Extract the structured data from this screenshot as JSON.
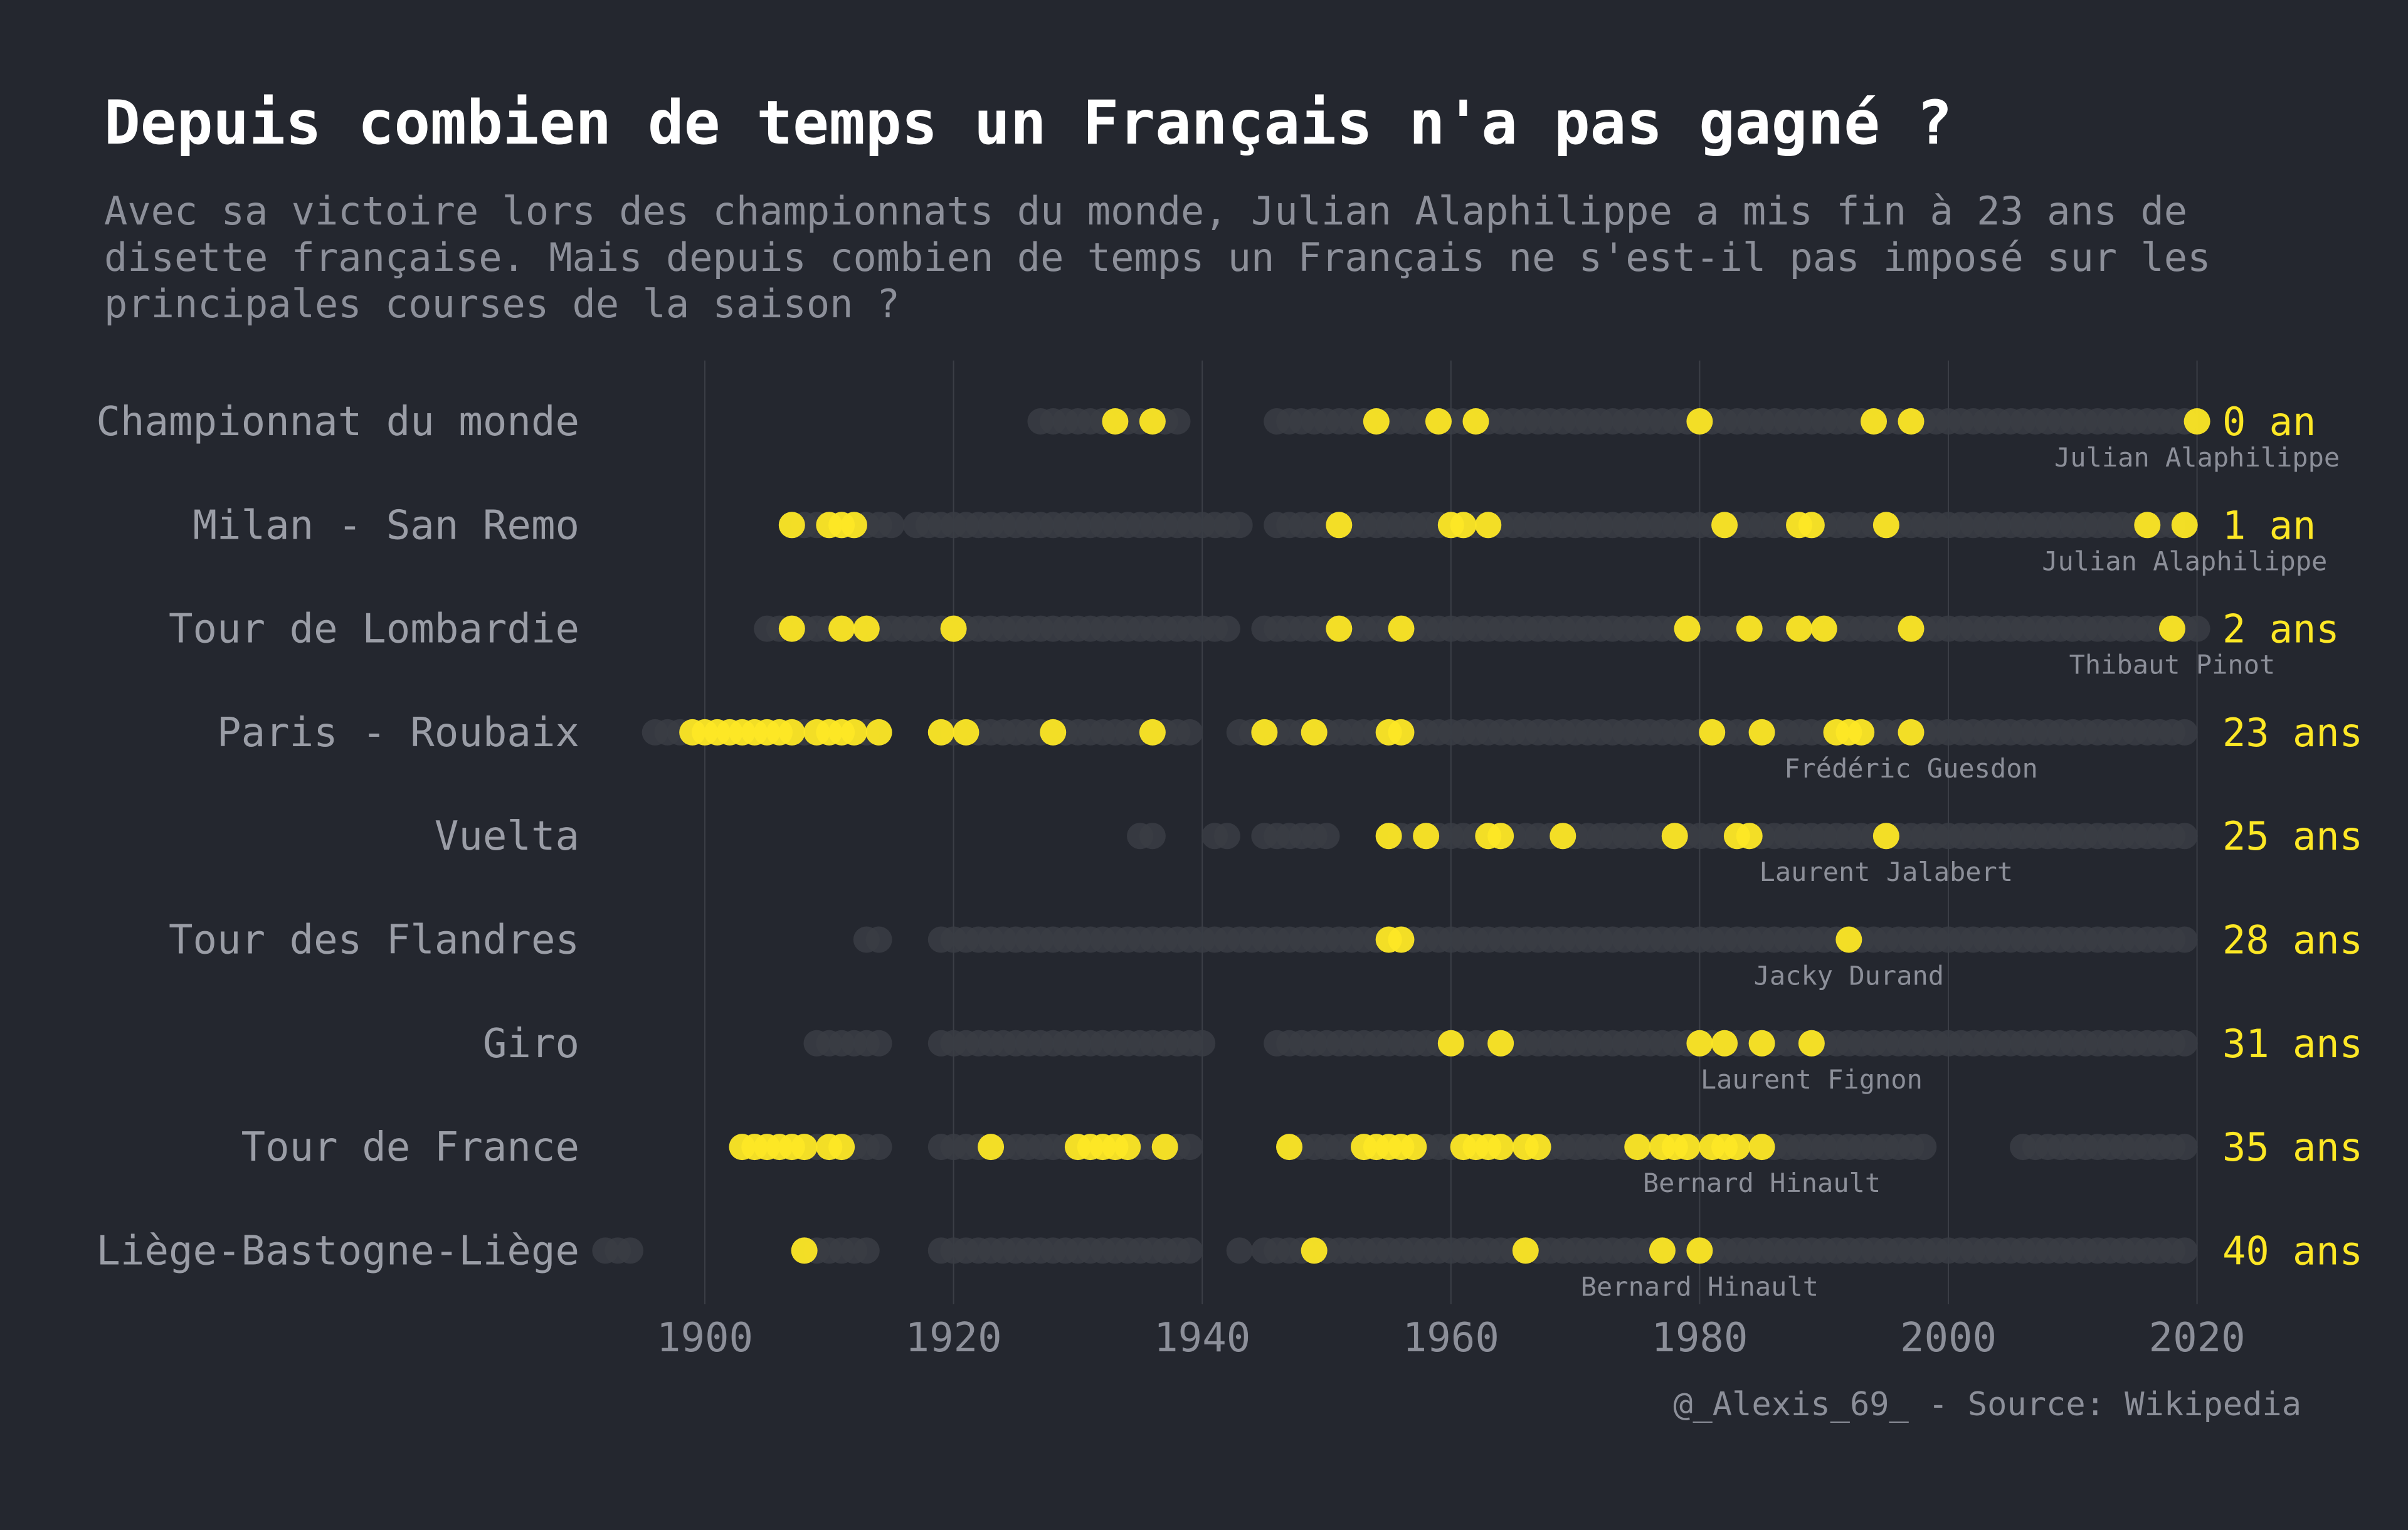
{
  "title": "Depuis combien de temps un Français n'a pas gagné ?",
  "subtitle": "Avec sa victoire lors des championnats du monde, Julian Alaphilippe a mis fin à 23 ans de disette française. Mais depuis combien de temps un Français ne s'est-il pas imposé sur les principales courses de la saison ?",
  "caption": "@_Alexis_69_ - Source: Wikipedia",
  "colors": {
    "background": "#24272f",
    "win": "#fde725",
    "edition": "#3a3d44",
    "grid": "#3b3e46",
    "label": "#9a9da6",
    "axis_tick": "#8c8f99",
    "winner": "#8c8f99"
  },
  "chart_data": {
    "type": "scatter",
    "xlim": [
      1895,
      2020
    ],
    "x_ticks": [
      1900,
      1920,
      1940,
      1960,
      1980,
      2000,
      2020
    ],
    "grid": "vertical",
    "races": [
      {
        "name": "Championnat du monde",
        "gap_label": "0 an",
        "last_winner": "Julian Alaphilippe",
        "editions": [
          [
            1927,
            1938
          ],
          [
            1946,
            2019
          ]
        ],
        "wins": [
          1933,
          1936,
          1954,
          1959,
          1962,
          1980,
          1994,
          1997,
          2020
        ]
      },
      {
        "name": "Milan - San Remo",
        "gap_label": "1 an",
        "last_winner": "Julian Alaphilippe",
        "editions": [
          [
            1907,
            1915
          ],
          [
            1917,
            1943
          ],
          [
            1946,
            2018
          ]
        ],
        "wins": [
          1907,
          1910,
          1911,
          1912,
          1951,
          1960,
          1961,
          1963,
          1982,
          1988,
          1989,
          1995,
          2016,
          2019
        ]
      },
      {
        "name": "Tour de Lombardie",
        "gap_label": "2 ans",
        "last_winner": "Thibaut Pinot",
        "editions": [
          [
            1905,
            1942
          ],
          [
            1945,
            2020
          ]
        ],
        "wins": [
          1907,
          1911,
          1913,
          1920,
          1951,
          1956,
          1979,
          1984,
          1988,
          1990,
          1997,
          2018
        ]
      },
      {
        "name": "Paris - Roubaix",
        "gap_label": "23 ans",
        "last_winner": "Frédéric Guesdon",
        "editions": [
          [
            1896,
            1914
          ],
          [
            1919,
            1939
          ],
          [
            1943,
            2019
          ]
        ],
        "wins": [
          1899,
          1900,
          1901,
          1902,
          1903,
          1904,
          1905,
          1906,
          1907,
          1909,
          1910,
          1911,
          1912,
          1914,
          1919,
          1921,
          1928,
          1936,
          1945,
          1949,
          1955,
          1956,
          1981,
          1985,
          1991,
          1992,
          1993,
          1997
        ]
      },
      {
        "name": "Vuelta",
        "gap_label": "25 ans",
        "last_winner": "Laurent Jalabert",
        "editions": [
          [
            1935,
            1936
          ],
          [
            1941,
            1942
          ],
          [
            1945,
            1950
          ],
          [
            1955,
            2019
          ]
        ],
        "wins": [
          1955,
          1958,
          1963,
          1964,
          1969,
          1978,
          1983,
          1984,
          1995
        ]
      },
      {
        "name": "Tour des Flandres",
        "gap_label": "28 ans",
        "last_winner": "Jacky Durand",
        "editions": [
          [
            1913,
            1914
          ],
          [
            1919,
            2019
          ]
        ],
        "wins": [
          1955,
          1956,
          1992
        ]
      },
      {
        "name": "Giro",
        "gap_label": "31 ans",
        "last_winner": "Laurent Fignon",
        "editions": [
          [
            1909,
            1914
          ],
          [
            1919,
            1940
          ],
          [
            1946,
            2019
          ]
        ],
        "wins": [
          1960,
          1964,
          1980,
          1982,
          1985,
          1989
        ]
      },
      {
        "name": "Tour de France",
        "gap_label": "35 ans",
        "last_winner": "Bernard Hinault",
        "editions": [
          [
            1903,
            1914
          ],
          [
            1919,
            1939
          ],
          [
            1947,
            1998
          ],
          [
            2006,
            2019
          ]
        ],
        "wins": [
          1903,
          1904,
          1905,
          1906,
          1907,
          1908,
          1910,
          1911,
          1923,
          1930,
          1931,
          1932,
          1933,
          1934,
          1937,
          1947,
          1953,
          1954,
          1955,
          1956,
          1957,
          1961,
          1962,
          1963,
          1964,
          1966,
          1967,
          1975,
          1977,
          1978,
          1979,
          1981,
          1982,
          1983,
          1985
        ]
      },
      {
        "name": "Liège-Bastogne-Liège",
        "gap_label": "40 ans",
        "last_winner": "Bernard Hinault",
        "editions": [
          [
            1892,
            1894
          ],
          [
            1908,
            1913
          ],
          [
            1919,
            1939
          ],
          [
            1943,
            1943
          ],
          [
            1945,
            2019
          ]
        ],
        "wins": [
          1908,
          1949,
          1966,
          1977,
          1980
        ]
      }
    ]
  }
}
